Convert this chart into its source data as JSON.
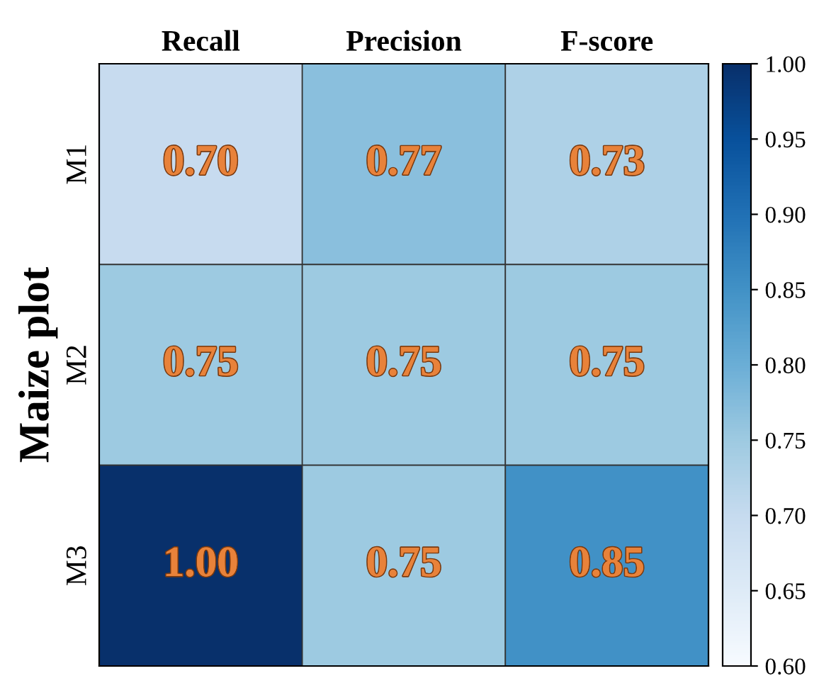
{
  "chart_data": {
    "type": "heatmap",
    "ylabel": "Maize plot",
    "categories": [
      "Recall",
      "Precision",
      "F-score"
    ],
    "y_categories": [
      "M1",
      "M2",
      "M3"
    ],
    "cells": [
      [
        0.7,
        0.77,
        0.73
      ],
      [
        0.75,
        0.75,
        0.75
      ],
      [
        1.0,
        0.75,
        0.85
      ]
    ],
    "cell_labels": [
      [
        "0.70",
        "0.77",
        "0.73"
      ],
      [
        "0.75",
        "0.75",
        "0.75"
      ],
      [
        "1.00",
        "0.75",
        "0.85"
      ]
    ],
    "clim": [
      0.6,
      1.0
    ],
    "cticks": [
      {
        "value": 0.6,
        "label": "0.60"
      },
      {
        "value": 0.65,
        "label": "0.65"
      },
      {
        "value": 0.7,
        "label": "0.70"
      },
      {
        "value": 0.75,
        "label": "0.75"
      },
      {
        "value": 0.8,
        "label": "0.80"
      },
      {
        "value": 0.85,
        "label": "0.85"
      },
      {
        "value": 0.9,
        "label": "0.90"
      },
      {
        "value": 0.95,
        "label": "0.95"
      },
      {
        "value": 1.0,
        "label": "1.00"
      }
    ],
    "data_labels": true
  }
}
